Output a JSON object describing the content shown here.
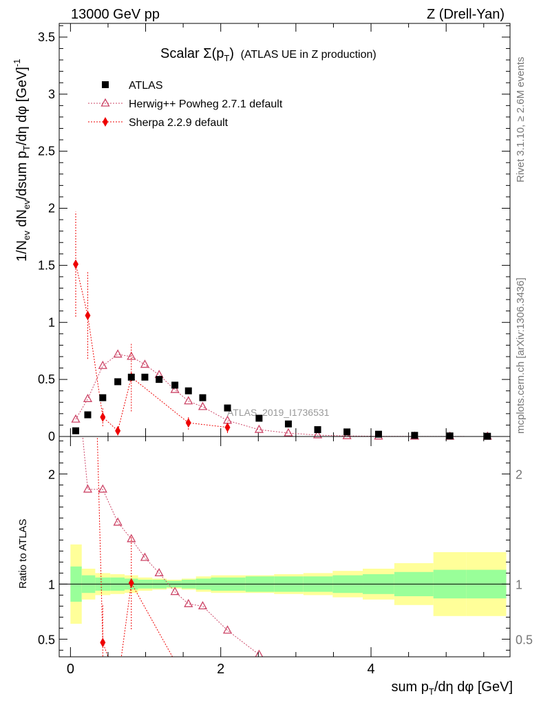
{
  "header": {
    "energy": "13000 GeV pp",
    "process": "Z (Drell-Yan)"
  },
  "side": {
    "rivet": "Rivet 3.1.10, ≥ 2.6M events",
    "mcplots": "mcplots.cern.ch [arXiv:1306.3436]"
  },
  "chart_data": [
    {
      "type": "scatter",
      "title": "Scalar Σ(pT) (ATLAS UE in Z production)",
      "title_parts": {
        "main": "Scalar Σ(p",
        "sub": "T",
        "close": ")",
        "suffix": "(ATLAS UE in Z production)"
      },
      "ylabel": "1/Nev dNev/dsum pT/dη dφ [GeV]-1",
      "ylabel_parts": {
        "a": "1/N",
        "a_sub": "ev",
        "b": " dN",
        "b_sub": "ev",
        "c": "/dsum p",
        "c_sub": "T",
        "d": "/dη dφ  [GeV]",
        "d_sup": "-1"
      },
      "watermark": "ATLAS_2019_I1736531",
      "xlim": [
        -0.15,
        5.85
      ],
      "ylim": [
        0,
        3.62
      ],
      "y_ticks": [
        "0",
        "0.5",
        "1",
        "1.5",
        "2",
        "2.5",
        "3",
        "3.5"
      ],
      "legend_position": "top-left",
      "series": [
        {
          "name": "ATLAS",
          "color": "#000000",
          "marker": "square",
          "x": [
            0.07,
            0.23,
            0.43,
            0.63,
            0.81,
            0.99,
            1.18,
            1.39,
            1.57,
            1.76,
            2.09,
            2.51,
            2.9,
            3.29,
            3.68,
            4.1,
            4.58,
            5.05,
            5.55
          ],
          "y": [
            0.05,
            0.19,
            0.34,
            0.48,
            0.52,
            0.52,
            0.5,
            0.45,
            0.4,
            0.34,
            0.25,
            0.16,
            0.11,
            0.06,
            0.04,
            0.02,
            0.01,
            0.005,
            0.002
          ],
          "band_edges": [
            0.0,
            0.15,
            0.33,
            0.53,
            0.72,
            0.9,
            1.09,
            1.28,
            1.48,
            1.67,
            1.87,
            2.33,
            2.71,
            3.1,
            3.49,
            3.89,
            4.31,
            4.83,
            5.27,
            5.8
          ],
          "band_inner": [
            0.16,
            0.08,
            0.06,
            0.06,
            0.05,
            0.04,
            0.04,
            0.03,
            0.04,
            0.05,
            0.06,
            0.07,
            0.07,
            0.07,
            0.08,
            0.09,
            0.11,
            0.13,
            0.13
          ],
          "band_outer": [
            0.36,
            0.14,
            0.1,
            0.09,
            0.08,
            0.06,
            0.05,
            0.04,
            0.05,
            0.07,
            0.08,
            0.08,
            0.09,
            0.1,
            0.12,
            0.14,
            0.19,
            0.29,
            0.29
          ]
        },
        {
          "name": "Herwig++ Powheg 2.7.1 default",
          "color": "#cc4466",
          "marker": "triangle",
          "x": [
            0.07,
            0.23,
            0.43,
            0.63,
            0.81,
            0.99,
            1.18,
            1.39,
            1.57,
            1.76,
            2.09,
            2.51,
            2.9,
            3.29,
            3.68,
            4.1,
            4.58,
            5.05,
            5.55
          ],
          "y": [
            0.15,
            0.33,
            0.62,
            0.72,
            0.7,
            0.63,
            0.54,
            0.41,
            0.31,
            0.26,
            0.14,
            0.06,
            0.03,
            0.012,
            0.005,
            0.002,
            0.001,
            0.0005,
            0.0002
          ],
          "ratio_x": [
            0.23,
            0.43,
            0.63,
            0.81,
            0.99,
            1.18,
            1.39,
            1.57,
            1.76,
            2.09,
            2.51
          ],
          "ratio": [
            1.86,
            1.86,
            1.56,
            1.41,
            1.24,
            1.1,
            0.93,
            0.82,
            0.8,
            0.58,
            0.36
          ]
        },
        {
          "name": "Sherpa 2.2.9 default",
          "color": "#ee0000",
          "marker": "diamond",
          "x": [
            0.07,
            0.23,
            0.43,
            0.63,
            0.81,
            1.57,
            2.09
          ],
          "y": [
            1.51,
            1.06,
            0.17,
            0.05,
            0.52,
            0.12,
            0.08
          ],
          "yerr": [
            0.46,
            0.38,
            0.08,
            0.04,
            0.3,
            0.06,
            0.05
          ],
          "ratio_x": [
            0.43,
            0.81
          ],
          "ratio": [
            0.47,
            1.01
          ],
          "ratio_err": [
            0.35,
            0.42
          ]
        }
      ]
    },
    {
      "type": "scatter",
      "xlabel": "sum pT/dη dφ [GeV]",
      "xlabel_parts": {
        "a": "sum p",
        "a_sub": "T",
        "b": "/dη dφ [GeV]"
      },
      "ylabel": "Ratio to ATLAS",
      "xlim": [
        -0.15,
        5.85
      ],
      "ylim": [
        0.34,
        2.34
      ],
      "x_ticks": [
        "0",
        "2",
        "4"
      ],
      "y_ticks": [
        "0.5",
        "1",
        "2"
      ],
      "reference": 1
    }
  ]
}
